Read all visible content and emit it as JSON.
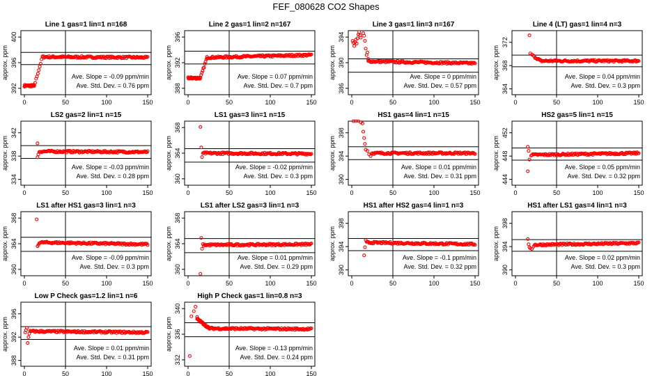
{
  "page_title": "FEF_080628  CO2 Shapes",
  "chart_data": [
    {
      "type": "scatter",
      "title": "Line 1 gas=1 lin=1 n=168",
      "ylabel": "approx. ppm",
      "xlim": [
        0,
        150
      ],
      "ylim": [
        391,
        401
      ],
      "yticks": [
        392,
        396,
        400
      ],
      "xticks": [
        0,
        50,
        100,
        150
      ],
      "hlines": [
        397.6,
        395.7
      ],
      "vline": 50,
      "stats": [
        "Ave. Slope = -0.09 ppm/min",
        "Ave. Std. Dev. = 0.76 ppm"
      ],
      "dot_color": "#ff0000",
      "segments": [
        {
          "x0": 0,
          "x1": 12,
          "y0": 392.4,
          "y1": 392.4,
          "n": 30
        },
        {
          "x0": 12,
          "x1": 22,
          "y0": 392.4,
          "y1": 396.9,
          "n": 10
        },
        {
          "x0": 22,
          "x1": 150,
          "y0": 396.9,
          "y1": 396.8,
          "n": 130
        }
      ]
    },
    {
      "type": "scatter",
      "title": "Line 2 gas=1 lin=2 n=167",
      "ylabel": "approx. ppm",
      "xlim": [
        0,
        150
      ],
      "ylim": [
        387,
        397
      ],
      "yticks": [
        388,
        392,
        396
      ],
      "xticks": [
        0,
        50,
        100,
        150
      ],
      "hlines": [
        393.8,
        391.8
      ],
      "vline": 50,
      "stats": [
        "Ave. Slope = 0.07 ppm/min",
        "Ave. Std. Dev. = 0.7 ppm"
      ],
      "dot_color": "#ff0000",
      "segments": [
        {
          "x0": 0,
          "x1": 15,
          "y0": 389.6,
          "y1": 389.6,
          "n": 30
        },
        {
          "x0": 15,
          "x1": 23,
          "y0": 389.6,
          "y1": 392.8,
          "n": 10
        },
        {
          "x0": 23,
          "x1": 150,
          "y0": 392.8,
          "y1": 393.2,
          "n": 130
        }
      ]
    },
    {
      "type": "scatter",
      "title": "Line 3 gas=1 lin=3 n=167",
      "ylabel": "approx. ppm",
      "xlim": [
        0,
        150
      ],
      "ylim": [
        385,
        395
      ],
      "yticks": [
        386,
        390,
        394
      ],
      "xticks": [
        0,
        50,
        100,
        150
      ],
      "hlines": [
        390.6,
        388.5
      ],
      "vline": 50,
      "stats": [
        "Ave. Slope = 0 ppm/min",
        "Ave. Std. Dev. = 0.57 ppm"
      ],
      "dot_color": "#ff0000",
      "points": [
        [
          1,
          393.4
        ],
        [
          2,
          393.1
        ],
        [
          3,
          392.6
        ],
        [
          4,
          393.2
        ],
        [
          5,
          393.6
        ],
        [
          6,
          393.0
        ],
        [
          7,
          393.8
        ],
        [
          8,
          394.4
        ],
        [
          9,
          394.8
        ],
        [
          10,
          394.3
        ],
        [
          11,
          393.9
        ],
        [
          14,
          394.6
        ],
        [
          15,
          394.2
        ],
        [
          16,
          393.4
        ],
        [
          17,
          392.2
        ],
        [
          18,
          391.2
        ],
        [
          19,
          391.6
        ],
        [
          20,
          390.6
        ]
      ],
      "segments": [
        {
          "x0": 20,
          "x1": 150,
          "y0": 390.2,
          "y1": 389.9,
          "n": 130
        }
      ]
    },
    {
      "type": "scatter",
      "title": "Line 4 (LT) gas=1 lin=4 n=3",
      "ylabel": "approx. ppm",
      "xlim": [
        0,
        150
      ],
      "ylim": [
        363,
        374
      ],
      "yticks": [
        364,
        368,
        372
      ],
      "xticks": [
        0,
        50,
        100,
        150
      ],
      "hlines": [
        369.8,
        367.8
      ],
      "vline": 50,
      "stats": [
        "Ave. Slope = 0.04 ppm/min",
        "Ave. Std. Dev. = 0.3 ppm"
      ],
      "dot_color": "#ff0000",
      "points": [
        [
          17,
          373.2
        ],
        [
          18,
          370.1
        ],
        [
          20,
          369.9
        ],
        [
          22,
          369.7
        ]
      ],
      "segments": [
        {
          "x0": 22,
          "x1": 30,
          "y0": 369.6,
          "y1": 368.9,
          "n": 10
        },
        {
          "x0": 30,
          "x1": 150,
          "y0": 368.8,
          "y1": 368.8,
          "n": 120
        }
      ]
    },
    {
      "type": "scatter",
      "title": "LS2 gas=2 lin=1 n=15",
      "ylabel": "approx. ppm",
      "xlim": [
        0,
        150
      ],
      "ylim": [
        333,
        344
      ],
      "yticks": [
        334,
        338,
        342
      ],
      "xticks": [
        0,
        50,
        100,
        150
      ],
      "hlines": [
        339.8,
        337.6
      ],
      "vline": 50,
      "stats": [
        "Ave. Slope = -0.03 ppm/min",
        "Ave. Std. Dev. = 0.28 ppm"
      ],
      "dot_color": "#ff0000",
      "points": [
        [
          16,
          340.2
        ],
        [
          16,
          337.8
        ],
        [
          17,
          338.3
        ],
        [
          18,
          338.7
        ]
      ],
      "segments": [
        {
          "x0": 19,
          "x1": 150,
          "y0": 338.8,
          "y1": 338.7,
          "n": 130
        }
      ]
    },
    {
      "type": "scatter",
      "title": "LS1 gas=3 lin=1 n=15",
      "ylabel": "approx. ppm",
      "xlim": [
        0,
        150
      ],
      "ylim": [
        359,
        369
      ],
      "yticks": [
        360,
        364,
        368
      ],
      "xticks": [
        0,
        50,
        100,
        150
      ],
      "hlines": [
        364.7,
        362.6
      ],
      "vline": 50,
      "stats": [
        "Ave. Slope = -0.02 ppm/min",
        "Ave. Std. Dev. = 0.3 ppm"
      ],
      "dot_color": "#ff0000",
      "points": [
        [
          15,
          368.1
        ],
        [
          16,
          364.9
        ],
        [
          17,
          363.4
        ],
        [
          18,
          364.0
        ]
      ],
      "segments": [
        {
          "x0": 19,
          "x1": 150,
          "y0": 364.0,
          "y1": 363.9,
          "n": 130
        }
      ]
    },
    {
      "type": "scatter",
      "title": "HS1 gas=4 lin=1 n=15",
      "ylabel": "approx. ppm",
      "xlim": [
        0,
        150
      ],
      "ylim": [
        389,
        400
      ],
      "yticks": [
        390,
        394,
        398
      ],
      "xticks": [
        0,
        50,
        100,
        150
      ],
      "hlines": [
        395.6,
        393.4
      ],
      "vline": 50,
      "stats": [
        "Ave. Slope = 0.01 ppm/min",
        "Ave. Std. Dev. = 0.31 ppm"
      ],
      "dot_color": "#ff0000",
      "points": [
        [
          2,
          400
        ],
        [
          5,
          400
        ],
        [
          8,
          400
        ],
        [
          11,
          399.8
        ],
        [
          13,
          399.6
        ],
        [
          14,
          398.2
        ],
        [
          15,
          397.1
        ],
        [
          16,
          396.1
        ],
        [
          17,
          395.1
        ],
        [
          19,
          394.9
        ],
        [
          21,
          394.3
        ],
        [
          23,
          394.0
        ]
      ],
      "segments": [
        {
          "x0": 24,
          "x1": 150,
          "y0": 394.5,
          "y1": 394.5,
          "n": 125
        }
      ]
    },
    {
      "type": "scatter",
      "title": "HS2 gas=5 lin=1 n=15",
      "ylabel": "approx. ppm",
      "xlim": [
        0,
        150
      ],
      "ylim": [
        443,
        454
      ],
      "yticks": [
        444,
        448,
        452
      ],
      "xticks": [
        0,
        50,
        100,
        150
      ],
      "hlines": [
        449.4,
        447.3
      ],
      "vline": 50,
      "stats": [
        "Ave. Slope = 0.05 ppm/min",
        "Ave. Std. Dev. = 0.32 ppm"
      ],
      "dot_color": "#ff0000",
      "points": [
        [
          15,
          449.6
        ],
        [
          16,
          448.9
        ],
        [
          17,
          447.4
        ],
        [
          15,
          445.4
        ]
      ],
      "segments": [
        {
          "x0": 19,
          "x1": 150,
          "y0": 448.2,
          "y1": 448.5,
          "n": 130
        }
      ]
    },
    {
      "type": "scatter",
      "title": "LS1 after HS1 gas=3 lin=1 n=3",
      "ylabel": "approx. ppm",
      "xlim": [
        0,
        150
      ],
      "ylim": [
        359,
        369
      ],
      "yticks": [
        360,
        364,
        368
      ],
      "xticks": [
        0,
        50,
        100,
        150
      ],
      "hlines": [
        365.0,
        362.8
      ],
      "vline": 50,
      "stats": [
        "Ave. Slope = -0.09 ppm/min",
        "Ave. Std. Dev. = 0.3 ppm"
      ],
      "dot_color": "#ff0000",
      "points": [
        [
          15,
          367.8
        ],
        [
          16,
          363.6
        ],
        [
          17,
          363.8
        ]
      ],
      "segments": [
        {
          "x0": 18,
          "x1": 150,
          "y0": 364.2,
          "y1": 363.9,
          "n": 130
        }
      ]
    },
    {
      "type": "scatter",
      "title": "LS1 after LS2 gas=3 lin=1 n=3",
      "ylabel": "approx. ppm",
      "xlim": [
        0,
        150
      ],
      "ylim": [
        359,
        369
      ],
      "yticks": [
        360,
        364,
        368
      ],
      "xticks": [
        0,
        50,
        100,
        150
      ],
      "hlines": [
        364.8,
        362.6
      ],
      "vline": 50,
      "stats": [
        "Ave. Slope = 0.01 ppm/min",
        "Ave. Std. Dev. = 0.29 ppm"
      ],
      "dot_color": "#ff0000",
      "points": [
        [
          15,
          359.3
        ],
        [
          16,
          364.9
        ],
        [
          17,
          363.2
        ]
      ],
      "segments": [
        {
          "x0": 18,
          "x1": 150,
          "y0": 363.8,
          "y1": 363.9,
          "n": 130
        }
      ]
    },
    {
      "type": "scatter",
      "title": "HS1 after HS2 gas=4 lin=1 n=3",
      "ylabel": "approx. ppm",
      "xlim": [
        0,
        150
      ],
      "ylim": [
        389,
        400
      ],
      "yticks": [
        390,
        394,
        398
      ],
      "xticks": [
        0,
        50,
        100,
        150
      ],
      "hlines": [
        395.4,
        393.3
      ],
      "vline": 50,
      "stats": [
        "Ave. Slope = -0.1 ppm/min",
        "Ave. Std. Dev. = 0.32 ppm"
      ],
      "dot_color": "#ff0000",
      "points": [
        [
          15,
          392.5
        ],
        [
          16,
          393.9
        ],
        [
          17,
          395.1
        ]
      ],
      "segments": [
        {
          "x0": 18,
          "x1": 150,
          "y0": 394.7,
          "y1": 394.4,
          "n": 130
        }
      ]
    },
    {
      "type": "scatter",
      "title": "HS1 after LS1 gas=4 lin=1 n=3",
      "ylabel": "approx. ppm",
      "xlim": [
        0,
        150
      ],
      "ylim": [
        389,
        400
      ],
      "yticks": [
        390,
        394,
        398
      ],
      "xticks": [
        0,
        50,
        100,
        150
      ],
      "hlines": [
        395.2,
        393.2
      ],
      "vline": 50,
      "stats": [
        "Ave. Slope = 0.02 ppm/min",
        "Ave. Std. Dev. = 0.3 ppm"
      ],
      "dot_color": "#ff0000",
      "points": [
        [
          15,
          395.3
        ],
        [
          16,
          394.4
        ],
        [
          17,
          393.9
        ],
        [
          18,
          393.7
        ],
        [
          20,
          393.6
        ],
        [
          22,
          394.0
        ]
      ],
      "segments": [
        {
          "x0": 23,
          "x1": 150,
          "y0": 394.3,
          "y1": 394.6,
          "n": 125
        }
      ]
    },
    {
      "type": "scatter",
      "title": "Low P Check gas=1.2 lin=1 n=6",
      "ylabel": "approx. ppm",
      "xlim": [
        0,
        150
      ],
      "ylim": [
        387,
        398
      ],
      "yticks": [
        388,
        392,
        396
      ],
      "xticks": [
        0,
        50,
        100,
        150
      ],
      "hlines": [
        393.8,
        391.6
      ],
      "vline": 50,
      "stats": [
        "Ave. Slope = 0.01 ppm/min",
        "Ave. Std. Dev. = 0.31 ppm"
      ],
      "dot_color": "#ff0000",
      "points": [
        [
          1,
          392.8
        ],
        [
          2,
          393.2
        ],
        [
          3,
          393.6
        ],
        [
          4,
          391.0
        ],
        [
          5,
          392.0
        ],
        [
          6,
          392.6
        ],
        [
          7,
          393.1
        ]
      ],
      "segments": [
        {
          "x0": 8,
          "x1": 150,
          "y0": 393.0,
          "y1": 392.8,
          "n": 140
        }
      ]
    },
    {
      "type": "scatter",
      "title": "High P Check gas=1 lin=0.8 n=3",
      "ylabel": "approx. ppm",
      "xlim": [
        0,
        150
      ],
      "ylim": [
        331,
        341
      ],
      "yticks": [
        332,
        336,
        340
      ],
      "xticks": [
        0,
        50,
        100,
        150
      ],
      "hlines": [
        337.8,
        335.6
      ],
      "vline": 50,
      "stats": [
        "Ave. Slope = -0.13 ppm/min",
        "Ave. Std. Dev. = 0.24 ppm"
      ],
      "dot_color": "#ff0000",
      "points": [
        [
          2,
          332.6
        ],
        [
          4,
          338.8
        ],
        [
          7,
          339.6
        ],
        [
          9,
          340.3
        ],
        [
          11,
          338.7
        ]
      ],
      "segments": [
        {
          "x0": 11,
          "x1": 25,
          "y0": 338.4,
          "y1": 337.0,
          "n": 25
        },
        {
          "x0": 25,
          "x1": 150,
          "y0": 336.9,
          "y1": 336.8,
          "n": 125
        }
      ]
    }
  ]
}
